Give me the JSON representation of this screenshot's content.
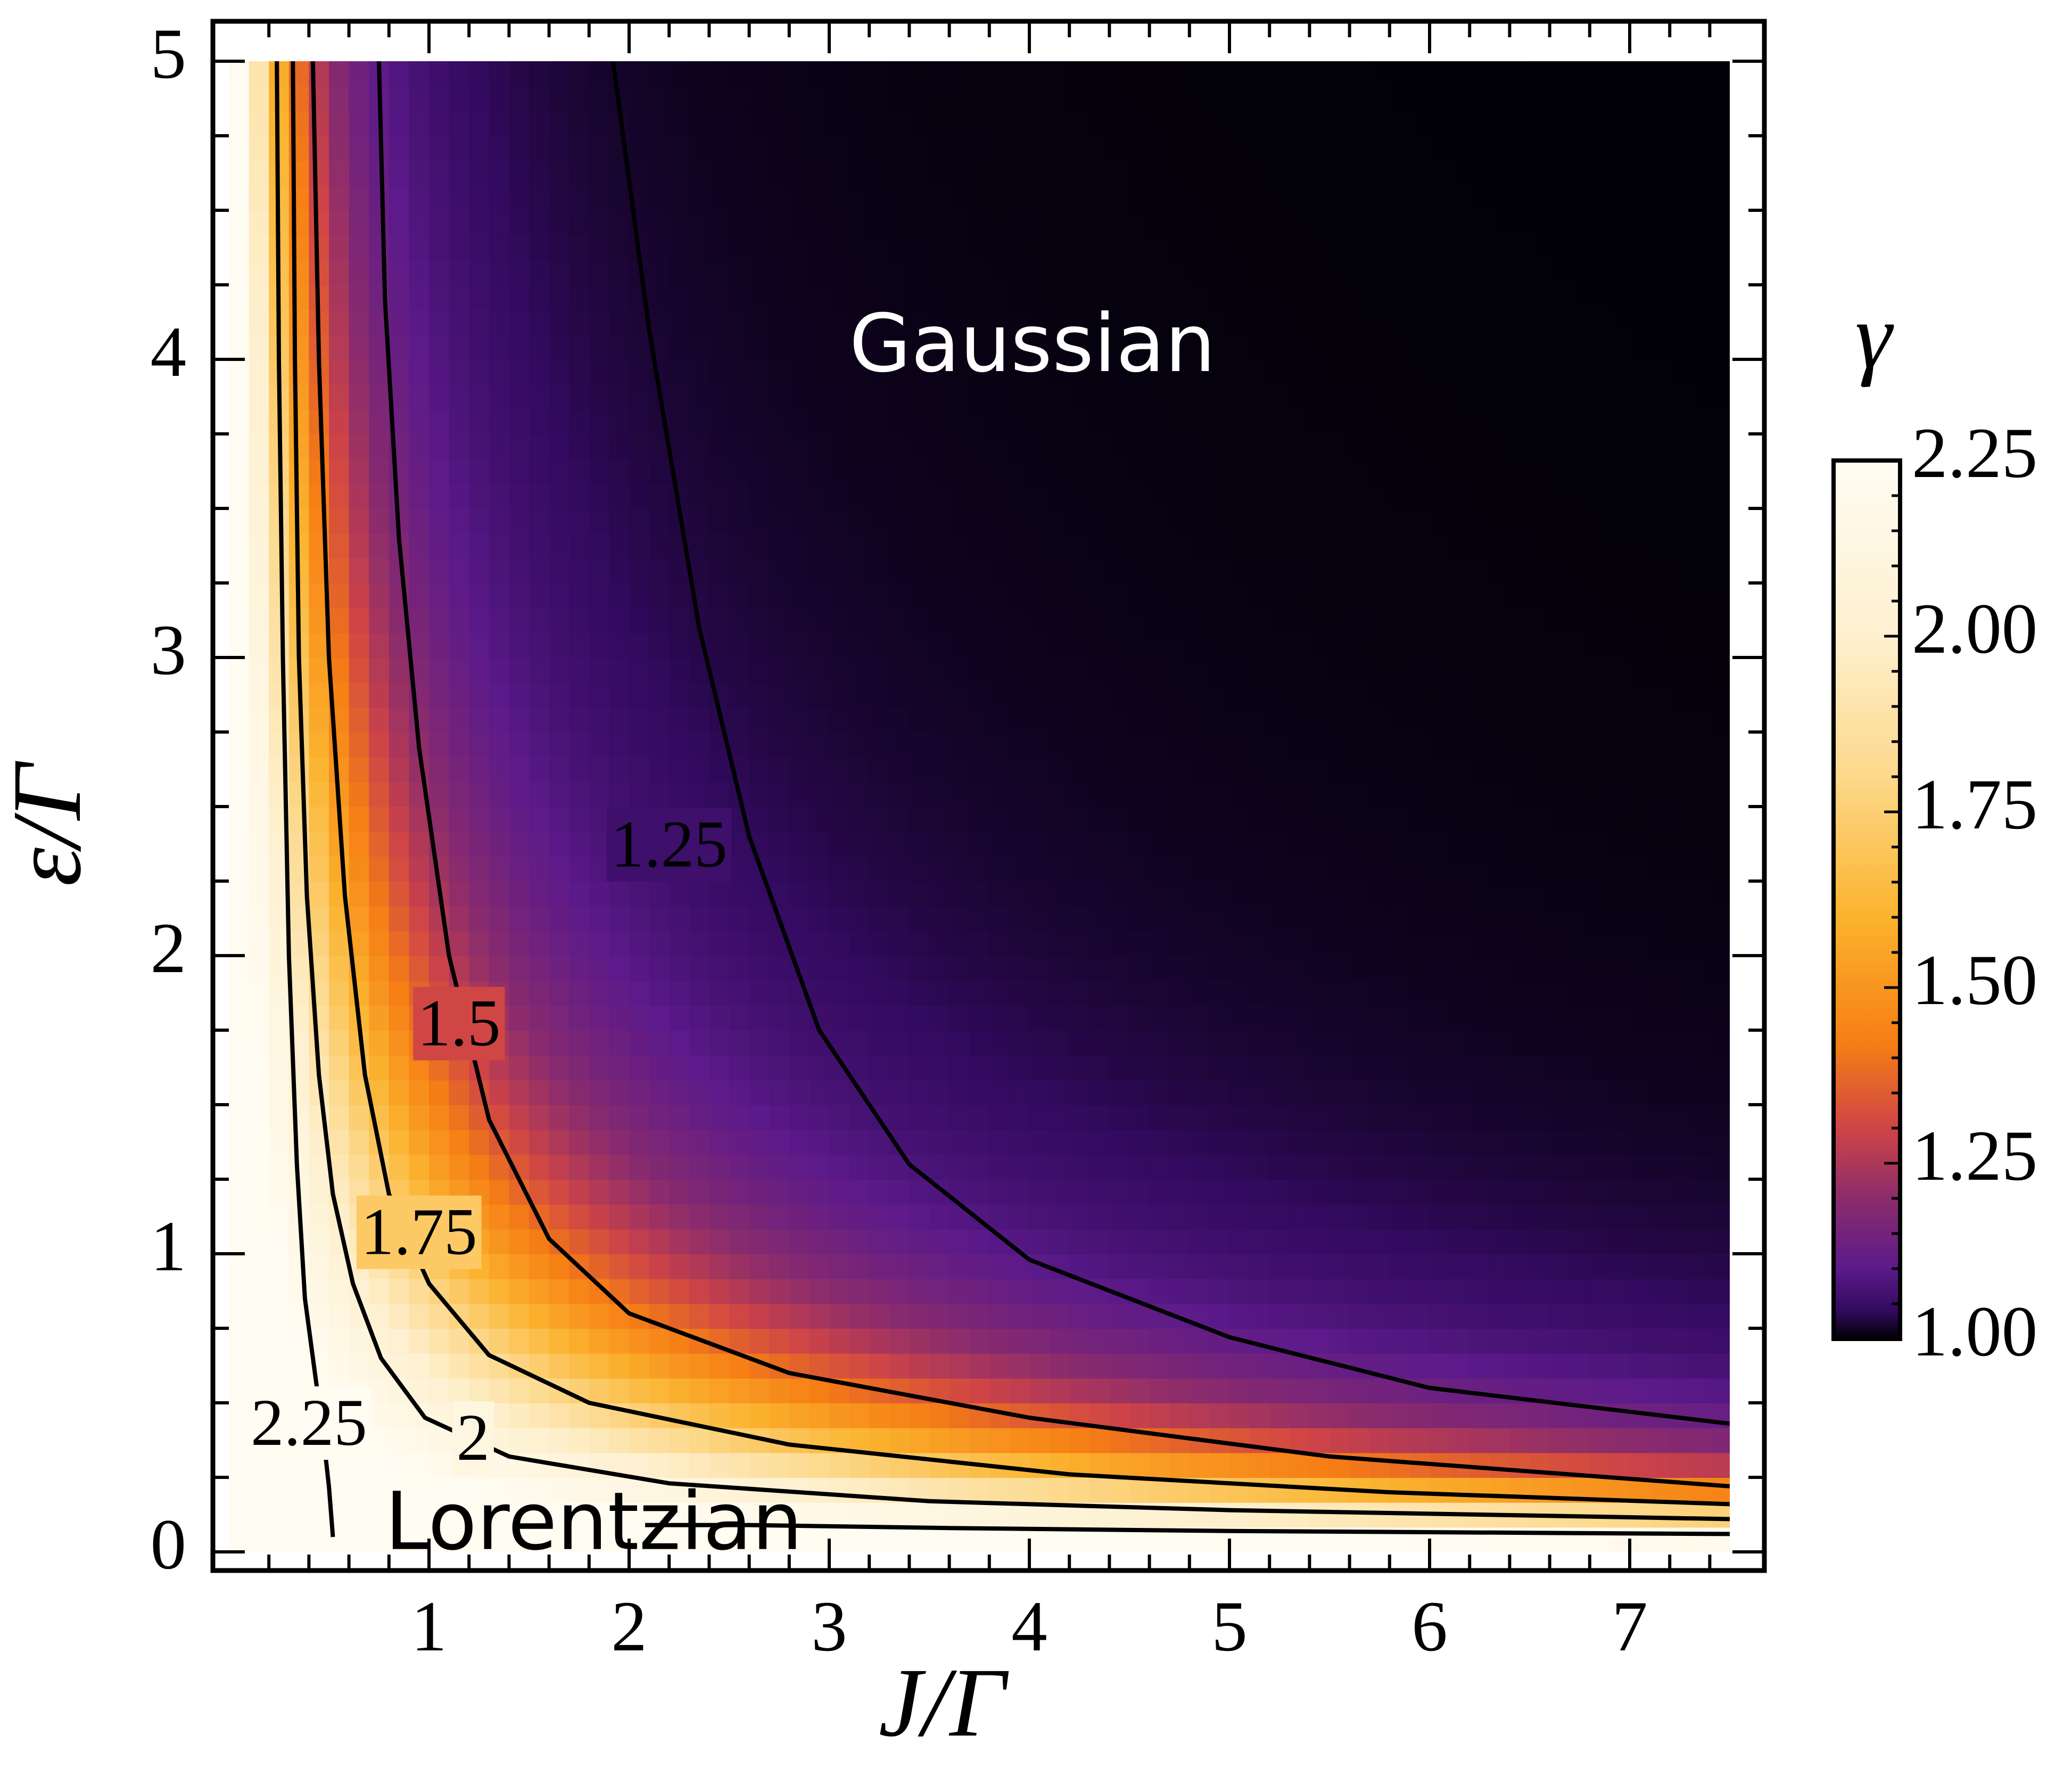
{
  "chart_data": {
    "type": "heatmap",
    "subtype": "density-with-contours",
    "title": "",
    "xlabel": "J/Γ",
    "ylabel": "ε/Γ",
    "xlim": [
      0,
      7.5
    ],
    "ylim": [
      0,
      5
    ],
    "x_ticks": [
      "1",
      "2",
      "3",
      "4",
      "5",
      "6",
      "7"
    ],
    "x_tick_values": [
      1,
      2,
      3,
      4,
      5,
      6,
      7
    ],
    "y_ticks": [
      "0",
      "1",
      "2",
      "3",
      "4",
      "5"
    ],
    "y_tick_values": [
      0,
      1,
      2,
      3,
      4,
      5
    ],
    "grid": false,
    "colorbar": {
      "label": "γ",
      "range": [
        1.0,
        2.25
      ],
      "ticks": [
        "1.00",
        "1.25",
        "1.50",
        "1.75",
        "2.00",
        "2.25"
      ],
      "tick_values": [
        1.0,
        1.25,
        1.5,
        1.75,
        2.0,
        2.25
      ],
      "colormap": [
        {
          "v": 1.0,
          "color": "#000004"
        },
        {
          "v": 1.04,
          "color": "#320a5e"
        },
        {
          "v": 1.1,
          "color": "#5c1a8a"
        },
        {
          "v": 1.2,
          "color": "#8b2c6c"
        },
        {
          "v": 1.3,
          "color": "#cf4446"
        },
        {
          "v": 1.42,
          "color": "#f67e14"
        },
        {
          "v": 1.6,
          "color": "#fbb32e"
        },
        {
          "v": 1.8,
          "color": "#fcd88a"
        },
        {
          "v": 2.0,
          "color": "#fef0cf"
        },
        {
          "v": 2.25,
          "color": "#fffcf2"
        }
      ]
    },
    "contours": [
      {
        "level": "1.25",
        "label_pos": [
          2.2,
          2.35
        ],
        "points": [
          [
            1.92,
            5.0
          ],
          [
            2.1,
            4.1
          ],
          [
            2.35,
            3.1
          ],
          [
            2.6,
            2.4
          ],
          [
            2.95,
            1.75
          ],
          [
            3.4,
            1.3
          ],
          [
            4.0,
            0.98
          ],
          [
            5.0,
            0.72
          ],
          [
            6.0,
            0.55
          ],
          [
            7.5,
            0.43
          ]
        ]
      },
      {
        "level": "1.5",
        "label_pos": [
          1.15,
          1.75
        ],
        "points": [
          [
            0.75,
            5.0
          ],
          [
            0.78,
            4.2
          ],
          [
            0.85,
            3.4
          ],
          [
            0.95,
            2.7
          ],
          [
            1.1,
            2.0
          ],
          [
            1.3,
            1.45
          ],
          [
            1.6,
            1.05
          ],
          [
            2.0,
            0.8
          ],
          [
            2.8,
            0.6
          ],
          [
            4.0,
            0.45
          ],
          [
            5.5,
            0.32
          ],
          [
            7.5,
            0.22
          ]
        ]
      },
      {
        "level": "1.75",
        "label_pos": [
          0.95,
          1.05
        ],
        "points": [
          [
            0.42,
            5.0
          ],
          [
            0.45,
            4.0
          ],
          [
            0.5,
            3.0
          ],
          [
            0.58,
            2.2
          ],
          [
            0.68,
            1.6
          ],
          [
            0.8,
            1.2
          ],
          [
            1.0,
            0.9
          ],
          [
            1.3,
            0.66
          ],
          [
            1.8,
            0.5
          ],
          [
            2.8,
            0.36
          ],
          [
            4.2,
            0.26
          ],
          [
            5.8,
            0.2
          ],
          [
            7.5,
            0.16
          ]
        ]
      },
      {
        "level": "2",
        "label_pos": [
          1.22,
          0.36
        ],
        "points": [
          [
            0.32,
            5.0
          ],
          [
            0.33,
            4.0
          ],
          [
            0.35,
            3.0
          ],
          [
            0.39,
            2.2
          ],
          [
            0.45,
            1.6
          ],
          [
            0.52,
            1.2
          ],
          [
            0.62,
            0.9
          ],
          [
            0.76,
            0.65
          ],
          [
            0.98,
            0.45
          ],
          [
            1.4,
            0.32
          ],
          [
            2.2,
            0.23
          ],
          [
            3.5,
            0.17
          ],
          [
            5.0,
            0.14
          ],
          [
            7.5,
            0.11
          ]
        ]
      },
      {
        "level": "2.25",
        "label_pos": [
          0.4,
          0.41
        ],
        "points": [
          [
            0.24,
            5.0
          ],
          [
            0.25,
            4.0
          ],
          [
            0.27,
            3.0
          ],
          [
            0.3,
            2.0
          ],
          [
            0.34,
            1.3
          ],
          [
            0.38,
            0.85
          ],
          [
            0.43,
            0.6
          ],
          [
            0.47,
            0.4
          ],
          [
            0.5,
            0.22
          ],
          [
            0.52,
            0.05
          ]
        ]
      },
      {
        "level": "",
        "points": [
          [
            2.08,
            0.09
          ],
          [
            2.6,
            0.09
          ],
          [
            3.6,
            0.08
          ],
          [
            5.0,
            0.07
          ],
          [
            7.5,
            0.06
          ]
        ]
      }
    ],
    "annotations": [
      {
        "text": "Gaussian",
        "x": 3.1,
        "y": 4.05
      },
      {
        "text": "Lorentzian",
        "x": 0.78,
        "y": 0.09
      }
    ]
  }
}
